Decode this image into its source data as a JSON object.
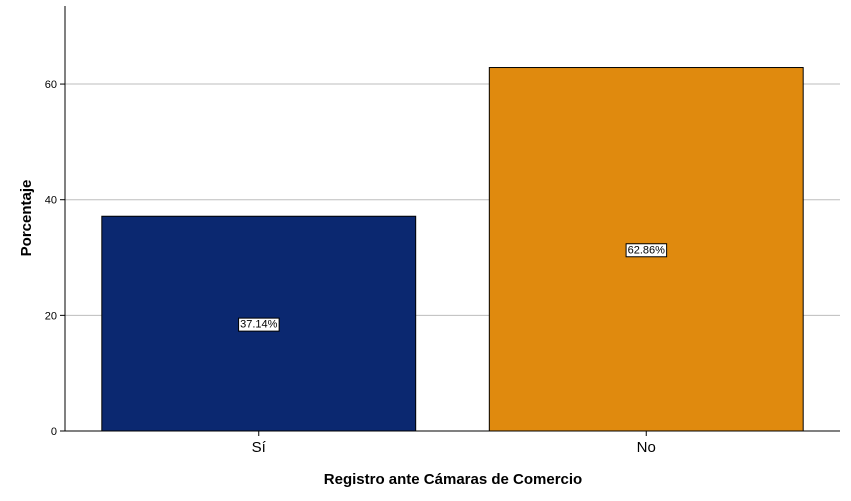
{
  "chart_data": {
    "type": "bar",
    "categories": [
      "Sí",
      "No"
    ],
    "values": [
      37.14,
      62.86
    ],
    "data_labels": [
      "37.14%",
      "62.86%"
    ],
    "colors": [
      "#0b2870",
      "#e08a0e"
    ],
    "xlabel": "Registro ante Cámaras de Comercio",
    "ylabel": "Porcentaje",
    "ylim": [
      0,
      73.5
    ],
    "yticks": [
      0,
      20,
      40,
      60
    ],
    "ytick_labels": [
      "0",
      "20",
      "40",
      "60"
    ],
    "grid": true,
    "gridline_color": "#bdbdbd"
  }
}
